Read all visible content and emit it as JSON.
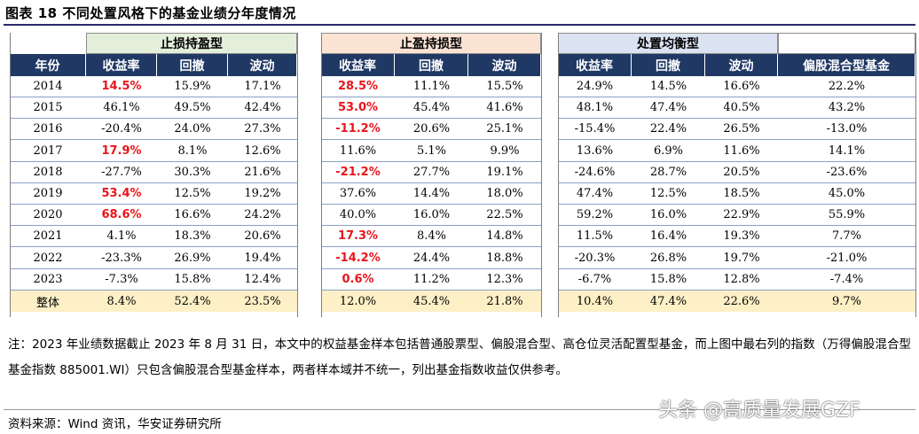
{
  "title": "图表 18  不同处置风格下的基金业绩分年度情况",
  "groups": [
    "止损持盈型",
    "止盈持损型",
    "处置均衡型"
  ],
  "headers": [
    "年份",
    "收益率",
    "回撤",
    "波动",
    "收益率",
    "回撤",
    "波动",
    "收益率",
    "回撤",
    "波动",
    "偏股混合型基金"
  ],
  "rows": [
    [
      "2014",
      "14.5%",
      "15.9%",
      "17.1%",
      "28.5%",
      "11.1%",
      "15.5%",
      "24.9%",
      "14.5%",
      "16.6%",
      "22.2%"
    ],
    [
      "2015",
      "46.1%",
      "49.5%",
      "42.4%",
      "53.0%",
      "45.4%",
      "41.6%",
      "48.1%",
      "47.4%",
      "40.5%",
      "43.2%"
    ],
    [
      "2016",
      "-20.4%",
      "24.0%",
      "27.3%",
      "-11.2%",
      "20.6%",
      "25.1%",
      "-15.4%",
      "22.4%",
      "26.5%",
      "-13.0%"
    ],
    [
      "2017",
      "17.9%",
      "8.1%",
      "12.6%",
      "11.6%",
      "5.1%",
      "9.9%",
      "13.6%",
      "6.9%",
      "11.6%",
      "14.1%"
    ],
    [
      "2018",
      "-27.7%",
      "30.3%",
      "21.6%",
      "-21.2%",
      "27.7%",
      "19.1%",
      "-24.6%",
      "28.7%",
      "20.5%",
      "-23.6%"
    ],
    [
      "2019",
      "53.4%",
      "12.5%",
      "19.2%",
      "37.6%",
      "14.4%",
      "18.0%",
      "47.4%",
      "12.5%",
      "18.5%",
      "45.0%"
    ],
    [
      "2020",
      "68.6%",
      "16.6%",
      "24.2%",
      "40.0%",
      "16.0%",
      "22.5%",
      "59.2%",
      "16.0%",
      "22.9%",
      "55.9%"
    ],
    [
      "2021",
      "4.1%",
      "18.3%",
      "20.6%",
      "17.3%",
      "8.4%",
      "14.8%",
      "11.5%",
      "16.4%",
      "19.3%",
      "7.7%"
    ],
    [
      "2022",
      "-23.3%",
      "26.9%",
      "19.4%",
      "-14.2%",
      "24.4%",
      "18.8%",
      "-20.3%",
      "26.8%",
      "19.7%",
      "-21.0%"
    ],
    [
      "2023",
      "-7.3%",
      "15.8%",
      "12.4%",
      "0.6%",
      "11.2%",
      "12.3%",
      "-6.7%",
      "15.8%",
      "12.8%",
      "-7.4%"
    ]
  ],
  "total_row": [
    "整体",
    "8.4%",
    "52.4%",
    "23.5%",
    "12.0%",
    "45.4%",
    "21.8%",
    "10.4%",
    "47.4%",
    "22.6%",
    "9.7%"
  ],
  "highlight_color": "#e8151c",
  "header_color": "#203864",
  "note": "注：2023 年业绩数据截止 2023 年 8 月 31 日，本文中的权益基金样本包括普通股票型、偏股混合型、高仓位灵活配置型基金，而上图中最右列的指数（万得偏股混合型基金指数 885001.WI）只包含偏股混合型基金样本，两者样本域并不统一，列出基金指数收益仅供参考。",
  "source": "资料来源：Wind 资讯，华安证券研究所",
  "watermark": "头条 @高质量发展GZF"
}
